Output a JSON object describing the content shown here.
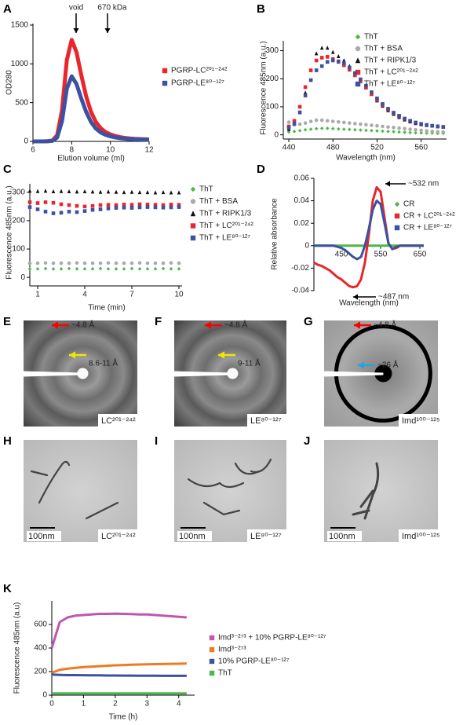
{
  "chart_data": [
    {
      "panel": "A",
      "type": "line",
      "xlabel": "Elution volume (ml)",
      "ylabel": "OD280",
      "annotations": [
        "void",
        "670 kDa"
      ],
      "x": [
        6,
        6.25,
        6.5,
        6.75,
        7,
        7.25,
        7.5,
        7.75,
        8,
        8.25,
        8.5,
        8.75,
        9,
        9.25,
        9.5,
        9.75,
        10,
        10.25,
        10.5,
        10.75,
        11,
        11.25,
        11.5,
        11.75,
        12
      ],
      "series": [
        {
          "name": "PGRP-LC²⁰¹⁻²⁴²",
          "color": "#e8262b",
          "marker": "square",
          "values": [
            0,
            0,
            0,
            2,
            10,
            80,
            400,
            1050,
            1310,
            1150,
            850,
            580,
            380,
            250,
            170,
            120,
            90,
            70,
            55,
            45,
            38,
            33,
            30,
            28,
            25
          ]
        },
        {
          "name": "PGRP-LE⁸⁰⁻¹²⁷",
          "color": "#3b52a3",
          "marker": "square",
          "values": [
            0,
            0,
            0,
            1,
            6,
            50,
            260,
            680,
            840,
            740,
            550,
            380,
            250,
            165,
            115,
            85,
            65,
            52,
            42,
            35,
            30,
            27,
            25,
            23,
            22
          ]
        }
      ],
      "xlim": [
        6,
        12
      ],
      "xticks": [
        6,
        8,
        10,
        12
      ],
      "ylim": [
        0,
        1520
      ],
      "yticks": [
        0,
        500,
        1000,
        1500
      ]
    },
    {
      "panel": "B",
      "type": "scatter",
      "xlabel": "Wavelength (nm)",
      "ylabel": "Fluorescence 485nm (a.u.)",
      "x": [
        440,
        445,
        450,
        455,
        460,
        465,
        470,
        475,
        480,
        485,
        490,
        495,
        500,
        505,
        510,
        515,
        520,
        525,
        530,
        535,
        540,
        545,
        550,
        555,
        560,
        565,
        570,
        575,
        580
      ],
      "series": [
        {
          "name": "ThT",
          "color": "#4db848",
          "marker": "diamond",
          "values": [
            10,
            12,
            15,
            18,
            20,
            22,
            23,
            23,
            22,
            21,
            20,
            19,
            18,
            17,
            16,
            15,
            14,
            13,
            12,
            11,
            10,
            9,
            8,
            7,
            7,
            6,
            6,
            5,
            5
          ]
        },
        {
          "name": "ThT + BSA",
          "color": "#aaaaaa",
          "marker": "circle",
          "values": [
            45,
            35,
            38,
            42,
            48,
            52,
            52,
            50,
            48,
            46,
            44,
            42,
            40,
            38,
            36,
            34,
            32,
            30,
            28,
            26,
            24,
            22,
            20,
            18,
            16,
            14,
            12,
            11,
            10
          ]
        },
        {
          "name": "ThT + RIPK1/3",
          "color": "#111111",
          "marker": "triangle",
          "values": [
            20,
            40,
            80,
            150,
            230,
            290,
            310,
            310,
            295,
            280,
            265,
            245,
            220,
            195,
            170,
            145,
            122,
            103,
            87,
            74,
            63,
            54,
            47,
            41,
            37,
            34,
            32,
            30,
            29
          ]
        },
        {
          "name": "ThT + LC²⁰¹⁻²⁴²",
          "color": "#e8262b",
          "marker": "square",
          "values": [
            30,
            50,
            100,
            170,
            230,
            265,
            275,
            278,
            270,
            260,
            248,
            232,
            212,
            190,
            168,
            145,
            124,
            106,
            90,
            77,
            66,
            57,
            49,
            43,
            38,
            35,
            32,
            30,
            28
          ]
        },
        {
          "name": "ThT + LE⁸⁰⁻¹²⁷",
          "color": "#3b52a3",
          "marker": "square",
          "values": [
            25,
            40,
            80,
            140,
            195,
            230,
            245,
            260,
            265,
            262,
            255,
            240,
            220,
            198,
            175,
            152,
            130,
            110,
            93,
            79,
            68,
            58,
            50,
            44,
            39,
            35,
            32,
            30,
            28
          ]
        }
      ],
      "xlim": [
        435,
        583
      ],
      "xticks": [
        440,
        480,
        520,
        560
      ],
      "ylim": [
        -15,
        335
      ],
      "yticks": [
        0,
        100,
        200,
        300
      ]
    },
    {
      "panel": "C",
      "type": "scatter",
      "xlabel": "Time (min)",
      "ylabel": "Fluorescence 485nm (a.u.)",
      "x": [
        0.5,
        1,
        1.5,
        2,
        2.5,
        3,
        3.5,
        4,
        4.5,
        5,
        5.5,
        6,
        6.5,
        7,
        7.5,
        8,
        8.5,
        9,
        9.5,
        10
      ],
      "series": [
        {
          "name": "ThT",
          "color": "#4db848",
          "marker": "diamond",
          "values": [
            30,
            30,
            31,
            30,
            30,
            31,
            30,
            30,
            30,
            31,
            30,
            30,
            30,
            31,
            30,
            30,
            30,
            31,
            30,
            30
          ]
        },
        {
          "name": "ThT + BSA",
          "color": "#aaaaaa",
          "marker": "circle",
          "values": [
            50,
            50,
            51,
            50,
            50,
            50,
            51,
            50,
            50,
            50,
            51,
            50,
            50,
            50,
            51,
            50,
            50,
            50,
            51,
            50
          ]
        },
        {
          "name": "ThT + RIPK1/3",
          "color": "#111111",
          "marker": "triangle",
          "values": [
            305,
            304,
            305,
            303,
            304,
            303,
            302,
            303,
            302,
            301,
            302,
            301,
            300,
            301,
            300,
            300,
            299,
            300,
            299,
            299
          ]
        },
        {
          "name": "ThT + LC²⁰¹⁻²⁴²",
          "color": "#e8262b",
          "marker": "square",
          "values": [
            265,
            262,
            265,
            263,
            258,
            255,
            252,
            250,
            252,
            255,
            256,
            255,
            257,
            256,
            258,
            257,
            256,
            255,
            257,
            256
          ]
        },
        {
          "name": "ThT + LE⁸⁰⁻¹²⁷",
          "color": "#3b52a3",
          "marker": "square",
          "values": [
            248,
            240,
            232,
            226,
            228,
            232,
            230,
            234,
            238,
            240,
            243,
            245,
            246,
            245,
            247,
            248,
            247,
            246,
            247,
            248
          ]
        }
      ],
      "xlim": [
        0.5,
        10.2
      ],
      "xticks": [
        1,
        4,
        7,
        10
      ],
      "ylim": [
        -30,
        330
      ],
      "yticks": [
        0,
        100,
        200,
        300
      ]
    },
    {
      "panel": "D",
      "type": "line",
      "xlabel": "Wavelength (nm)",
      "ylabel": "Relative absorbance",
      "annotations": [
        "~532 nm",
        "~487 nm"
      ],
      "x": [
        380,
        390,
        400,
        410,
        420,
        430,
        440,
        450,
        460,
        470,
        480,
        490,
        500,
        510,
        520,
        530,
        540,
        550,
        560,
        570,
        580,
        590,
        600,
        610,
        620,
        630,
        640,
        650,
        660
      ],
      "series": [
        {
          "name": "CR",
          "color": "#4db848",
          "marker": "diamond",
          "values": [
            0,
            0,
            0,
            0,
            0,
            0,
            0,
            0,
            0,
            0,
            0,
            0,
            0,
            0,
            0,
            0,
            0,
            0,
            0,
            0,
            0,
            0,
            0,
            0,
            0,
            0,
            0,
            0,
            0
          ]
        },
        {
          "name": "CR + LC²⁰¹⁻²⁴²",
          "color": "#e8262b",
          "marker": "square",
          "values": [
            -0.015,
            -0.017,
            -0.018,
            -0.02,
            -0.022,
            -0.025,
            -0.028,
            -0.03,
            -0.033,
            -0.036,
            -0.037,
            -0.036,
            -0.03,
            -0.015,
            0.01,
            0.04,
            0.052,
            0.048,
            0.025,
            0.002,
            -0.003,
            -0.002,
            0,
            0,
            0,
            0,
            0,
            0,
            0
          ]
        },
        {
          "name": "CR + LE⁸⁰⁻¹²⁷",
          "color": "#3b52a3",
          "marker": "square",
          "values": [
            0,
            0,
            0,
            0,
            0,
            0,
            -0.001,
            -0.002,
            -0.004,
            -0.007,
            -0.01,
            -0.012,
            -0.01,
            0,
            0.015,
            0.032,
            0.04,
            0.037,
            0.02,
            0.002,
            -0.003,
            -0.001,
            0,
            0,
            0,
            0,
            0,
            0,
            0
          ]
        }
      ],
      "xlim": [
        380,
        660
      ],
      "xticks": [
        450,
        550,
        650
      ],
      "ylim": [
        -0.04,
        0.06
      ],
      "yticks": [
        -0.04,
        -0.02,
        0,
        0.02,
        0.04,
        0.06
      ]
    },
    {
      "panel": "K",
      "type": "line",
      "xlabel": "Time (h)",
      "ylabel": "Fluorescence 485nm (a.u)",
      "x": [
        0,
        0.25,
        0.5,
        0.75,
        1,
        1.25,
        1.5,
        1.75,
        2,
        2.25,
        2.5,
        2.75,
        3,
        3.25,
        3.5,
        3.75,
        4,
        4.25
      ],
      "series": [
        {
          "name": "Imd³⁻²⁷³ + 10% PGRP-LE⁸⁰⁻¹²⁷",
          "color": "#c255b0",
          "marker": "square",
          "values": [
            400,
            620,
            660,
            675,
            680,
            685,
            690,
            690,
            692,
            690,
            688,
            685,
            685,
            680,
            675,
            670,
            665,
            660
          ]
        },
        {
          "name": "Imd³⁻²⁷³",
          "color": "#f07a22",
          "marker": "square",
          "values": [
            190,
            215,
            225,
            232,
            238,
            242,
            246,
            250,
            253,
            255,
            258,
            260,
            262,
            263,
            264,
            266,
            267,
            268
          ]
        },
        {
          "name": "10% PGRP-LE⁸⁰⁻¹²⁷",
          "color": "#3b52a3",
          "marker": "square",
          "values": [
            175,
            172,
            170,
            170,
            169,
            168,
            168,
            167,
            167,
            166,
            166,
            165,
            165,
            165,
            164,
            164,
            164,
            164
          ]
        },
        {
          "name": "ThT",
          "color": "#4db848",
          "marker": "square",
          "values": [
            15,
            15,
            15,
            15,
            15,
            15,
            15,
            15,
            15,
            15,
            15,
            15,
            15,
            15,
            15,
            15,
            15,
            15
          ]
        }
      ],
      "xlim": [
        0,
        4.5
      ],
      "xticks": [
        0,
        1,
        2,
        3,
        4
      ],
      "ylim": [
        0,
        800
      ],
      "yticks": [
        0,
        200,
        400,
        600
      ]
    }
  ],
  "image_panels": [
    {
      "panel": "E",
      "arrow_labels": [
        "~4.8 Å",
        "8.6-11 Å"
      ],
      "caption": "LC²⁰¹⁻²⁴²"
    },
    {
      "panel": "F",
      "arrow_labels": [
        "~4.8 Å",
        "9-11 Å"
      ],
      "caption": "LE⁸⁰⁻¹²⁷"
    },
    {
      "panel": "G",
      "arrow_labels": [
        "~4.8 Å",
        "~26 Å"
      ],
      "caption": "Imd¹⁰⁰⁻¹²⁵"
    },
    {
      "panel": "H",
      "scale_bar": "100nm",
      "caption": "LC²⁰¹⁻²⁴²"
    },
    {
      "panel": "I",
      "scale_bar": "100nm",
      "caption": "LE⁸⁰⁻¹²⁷"
    },
    {
      "panel": "J",
      "scale_bar": "100nm",
      "caption": "Imd¹⁰⁰⁻¹²⁵"
    }
  ]
}
